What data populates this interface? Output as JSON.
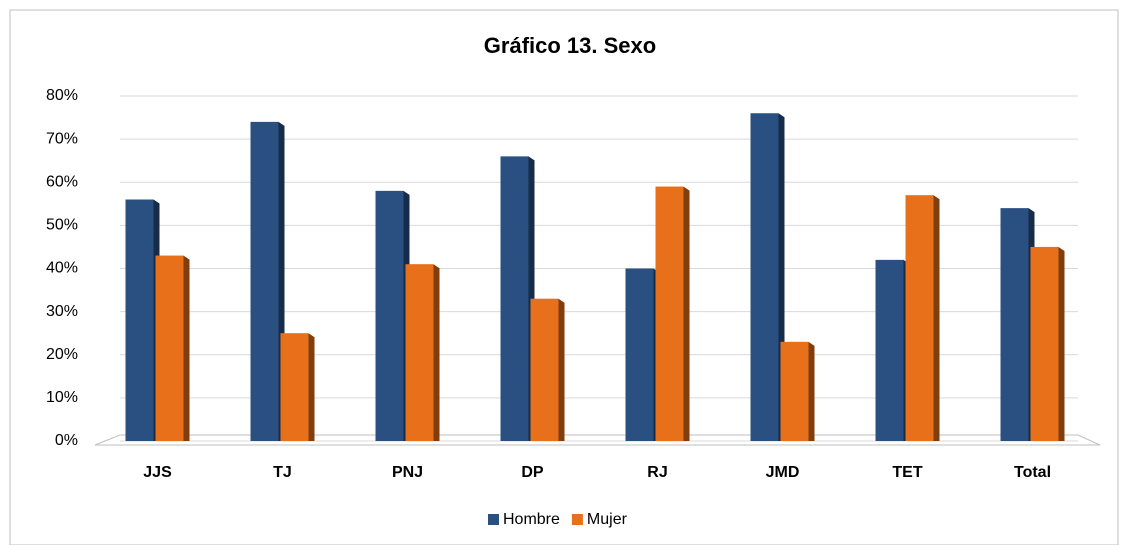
{
  "chart_data": {
    "type": "bar",
    "title": "Gráfico 13. Sexo",
    "categories": [
      "JJS",
      "TJ",
      "PNJ",
      "DP",
      "RJ",
      "JMD",
      "TET",
      "Total"
    ],
    "series": [
      {
        "name": "Hombre",
        "color": "#2a5082",
        "values": [
          56,
          74,
          58,
          66,
          40,
          76,
          42,
          54
        ]
      },
      {
        "name": "Mujer",
        "color": "#e8701a",
        "values": [
          43,
          25,
          41,
          33,
          59,
          23,
          57,
          45
        ]
      }
    ],
    "ylim": [
      0,
      80
    ],
    "yticks": [
      {
        "value": 0,
        "label": "0%"
      },
      {
        "value": 10,
        "label": "10%"
      },
      {
        "value": 20,
        "label": "20%"
      },
      {
        "value": 30,
        "label": "30%"
      },
      {
        "value": 40,
        "label": "40%"
      },
      {
        "value": 50,
        "label": "50%"
      },
      {
        "value": 60,
        "label": "60%"
      },
      {
        "value": 70,
        "label": "70%"
      },
      {
        "value": 80,
        "label": "80%"
      }
    ],
    "grid": true,
    "legend": "bottom"
  }
}
